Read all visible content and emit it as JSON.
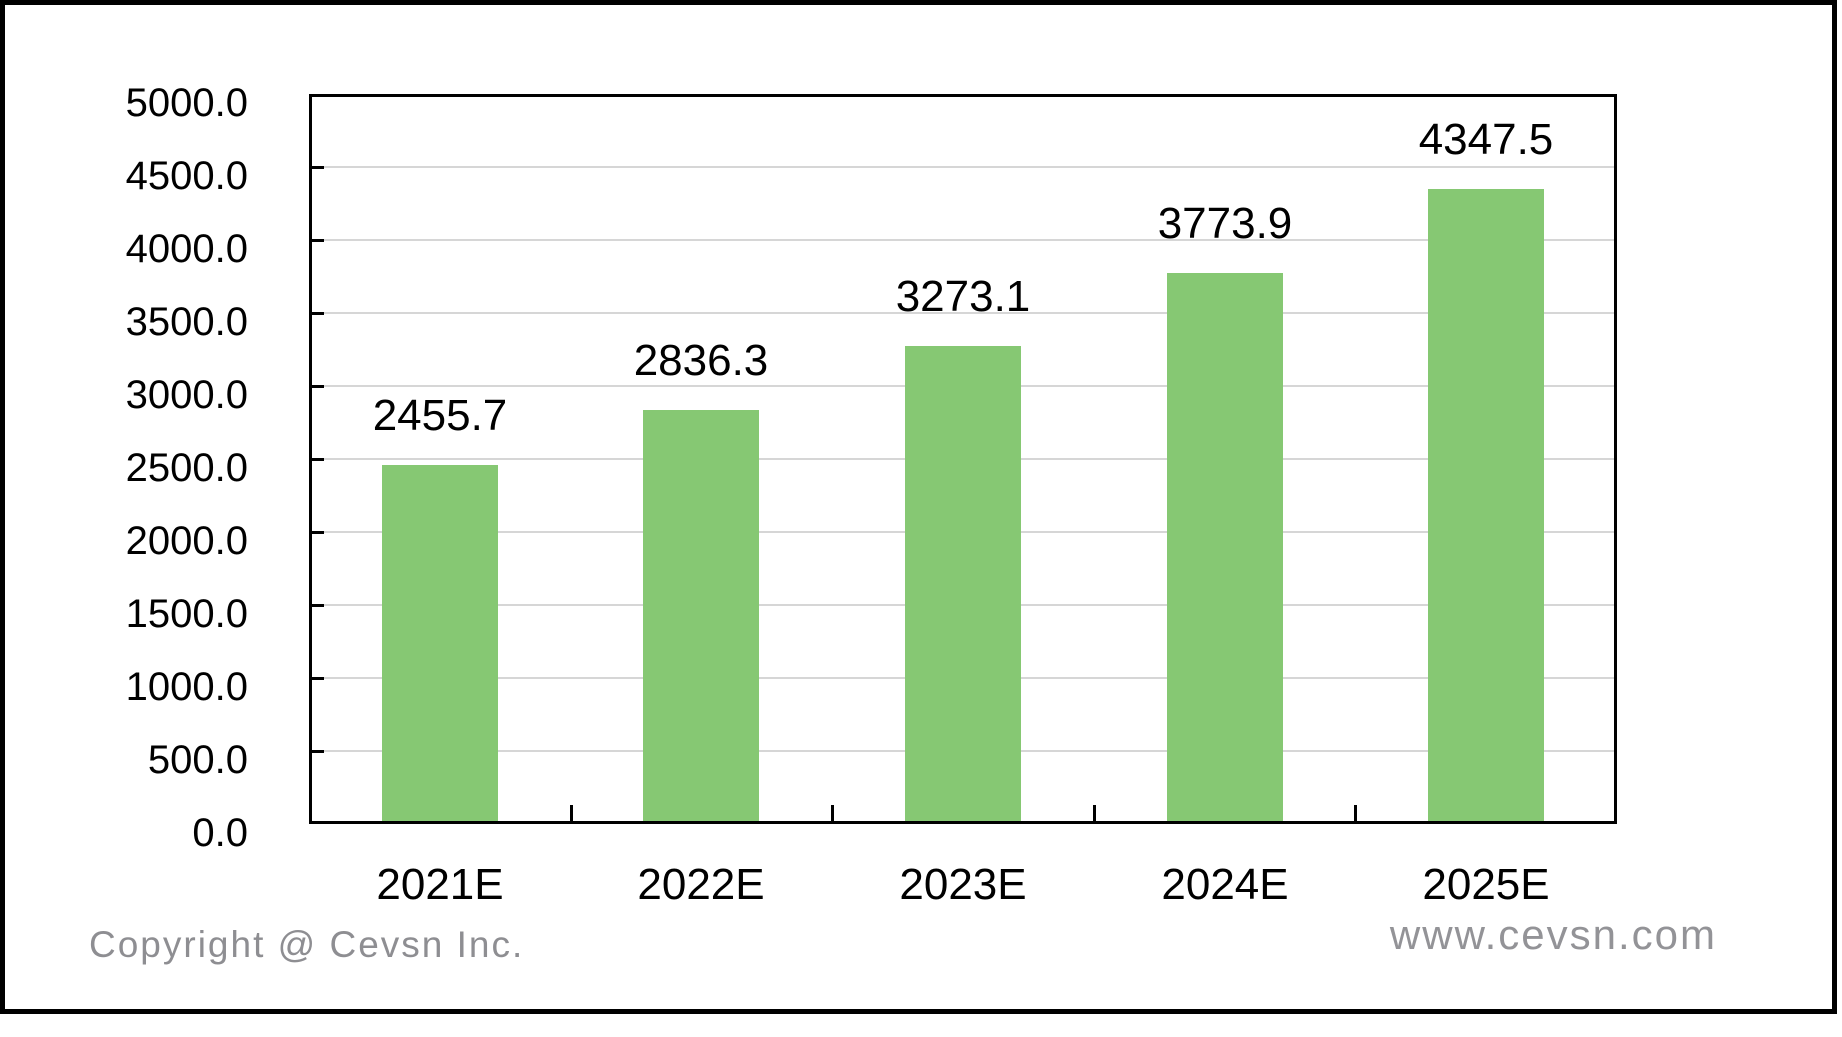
{
  "chart_data": {
    "type": "bar",
    "title": "",
    "xlabel": "",
    "ylabel": "",
    "categories": [
      "2021E",
      "2022E",
      "2023E",
      "2024E",
      "2025E"
    ],
    "values": [
      2455.7,
      2836.3,
      3273.1,
      3773.9,
      4347.5
    ],
    "value_labels": [
      "2455.7",
      "2836.3",
      "3273.1",
      "3773.9",
      "4347.5"
    ],
    "ylim": [
      0,
      5000
    ],
    "ytick_step": 500,
    "ytick_labels": [
      "5000.0",
      "4500.0",
      "4000.0",
      "3500.0",
      "3000.0",
      "2500.0",
      "2000.0",
      "1500.0",
      "1000.0",
      "500.0",
      "0.0"
    ],
    "grid": true,
    "legend_position": "none",
    "bar_color": "#86C873",
    "gridline_color": "#D6D6D6",
    "axis_color": "#000000",
    "label_color": "#000000"
  },
  "footer": {
    "copyright": "Copyright @ Cevsn Inc.",
    "website": "www.cevsn.com"
  }
}
